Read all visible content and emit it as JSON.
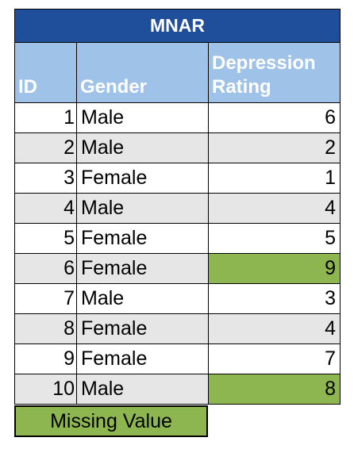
{
  "table": {
    "title": "MNAR",
    "headers": [
      "ID",
      "Gender",
      "Depression Rating"
    ],
    "rows": [
      {
        "id": "1",
        "gender": "Male",
        "rating": "6",
        "missing": false
      },
      {
        "id": "2",
        "gender": "Male",
        "rating": "2",
        "missing": false
      },
      {
        "id": "3",
        "gender": "Female",
        "rating": "1",
        "missing": false
      },
      {
        "id": "4",
        "gender": "Male",
        "rating": "4",
        "missing": false
      },
      {
        "id": "5",
        "gender": "Female",
        "rating": "5",
        "missing": false
      },
      {
        "id": "6",
        "gender": "Female",
        "rating": "9",
        "missing": true
      },
      {
        "id": "7",
        "gender": "Male",
        "rating": "3",
        "missing": false
      },
      {
        "id": "8",
        "gender": "Female",
        "rating": "4",
        "missing": false
      },
      {
        "id": "9",
        "gender": "Female",
        "rating": "7",
        "missing": false
      },
      {
        "id": "10",
        "gender": "Male",
        "rating": "8",
        "missing": true
      }
    ]
  },
  "legend": {
    "label": "Missing Value",
    "color": "#8db550"
  },
  "colors": {
    "title_bg": "#1f4e9a",
    "header_bg": "#9fc2e8",
    "alt_row_bg": "#e6e6e6"
  }
}
